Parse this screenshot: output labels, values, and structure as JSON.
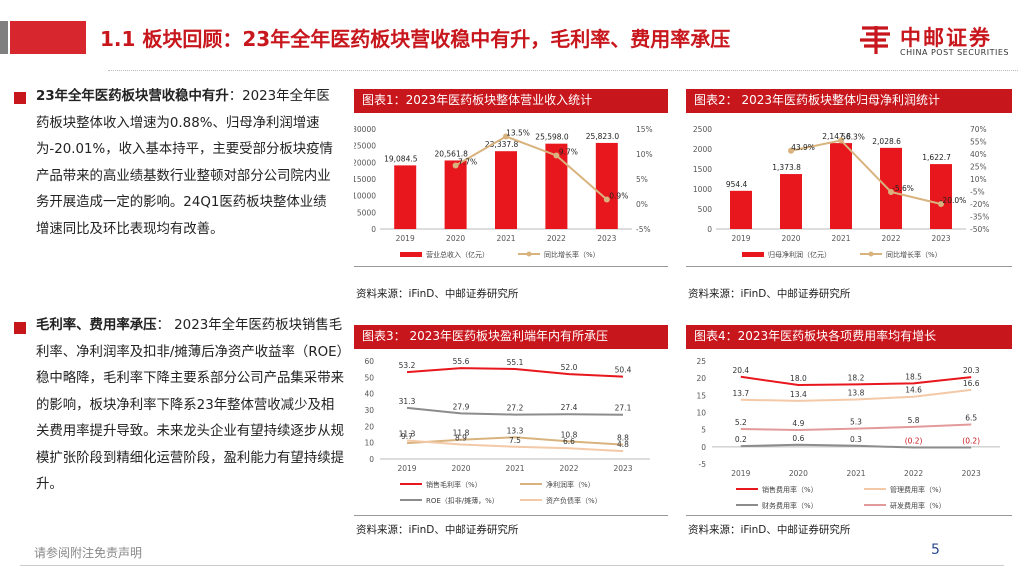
{
  "slide": {
    "title": "1.1 板块回顾：23年全年医药板块营收稳中有升，毛利率、费用率承压",
    "logo": {
      "cn": "中邮证券",
      "en": "CHINA POST SECURITIES",
      "color": "#c8161d"
    },
    "footer_left": "请参阅附注免责声明",
    "page_number": "5"
  },
  "left": {
    "p1_bold": "23年全年医药板块营收稳中有升",
    "p1_text": "：2023年全年医药板块整体收入增速为0.88%、归母净利润增速为-20.01%，收入基本持平，主要受部分板块疫情产品带来的高业绩基数行业整顿对部分公司院内业务开展造成一定的影响。24Q1医药板块整体业绩增速同比及环比表现均有改善。",
    "p2_bold": "毛利率、费用率承压",
    "p2_text": "： 2023年全年医药板块销售毛利率、净利润率及扣非/摊薄后净资产收益率（ROE）稳中略降，毛利率下降主要系部分公司产品集采带来的影响，板块净利率下降系23年整体营收减少及相关费用率提升导致。未来龙头企业有望持续逐步从规模扩张阶段到精细化运营阶段，盈利能力有望持续提升。"
  },
  "chart_data": [
    {
      "id": "c1",
      "type": "bar",
      "title": "图表1：2023年医药板块整体营业收入统计",
      "categories": [
        "2019",
        "2020",
        "2021",
        "2022",
        "2023"
      ],
      "series": [
        {
          "name": "营业总收入（亿元）",
          "values": [
            19084.5,
            20561.8,
            23337.8,
            25598.0,
            25823.0
          ],
          "labels": [
            "19,084.5",
            "20,561.8",
            "23,337.8",
            "25,598.0",
            "25,823.0"
          ],
          "axis": "left",
          "color": "#e8161d"
        },
        {
          "name": "同比增长率（%）",
          "values": [
            null,
            7.7,
            13.5,
            9.7,
            0.9
          ],
          "labels": [
            "",
            "7.7%",
            "13.5%",
            "9.7%",
            "0.9%"
          ],
          "axis": "right",
          "color": "#d9b37e"
        }
      ],
      "y_left": {
        "min": 0,
        "max": 30000,
        "ticks": [
          "0",
          "5000",
          "10000",
          "15000",
          "20000",
          "25000",
          "30000"
        ]
      },
      "y_right": {
        "min": -5,
        "max": 15,
        "ticks": [
          "-5%",
          "0%",
          "5%",
          "10%",
          "15%"
        ]
      },
      "source": "资料来源：iFinD、中邮证券研究所"
    },
    {
      "id": "c2",
      "type": "bar",
      "title": "图表2： 2023年医药板块整体归母净利润统计",
      "categories": [
        "2019",
        "2020",
        "2021",
        "2022",
        "2023"
      ],
      "series": [
        {
          "name": "归母净利润（亿元）",
          "values": [
            954.4,
            1373.8,
            2147.8,
            2028.6,
            1622.7
          ],
          "labels": [
            "954.4",
            "1,373.8",
            "2,147.8",
            "2,028.6",
            "1,622.7"
          ],
          "axis": "left",
          "color": "#e8161d"
        },
        {
          "name": "同比增长率（%）",
          "values": [
            null,
            43.9,
            56.3,
            -5.6,
            -20.0
          ],
          "labels": [
            "",
            "43.9%",
            "56.3%",
            "-5.6%",
            "-20.0%"
          ],
          "axis": "right",
          "color": "#d9b37e"
        }
      ],
      "y_left": {
        "min": 0,
        "max": 2500,
        "ticks": [
          "0",
          "500",
          "1000",
          "1500",
          "2000",
          "2500"
        ]
      },
      "y_right": {
        "min": -50,
        "max": 70,
        "ticks": [
          "-50%",
          "-35%",
          "-20%",
          "-5%",
          "10%",
          "25%",
          "40%",
          "55%",
          "70%"
        ]
      },
      "source": "资料来源：iFinD、中邮证券研究所"
    },
    {
      "id": "c3",
      "type": "line",
      "title": "图表3： 2023年医药板块盈利端年内有所承压",
      "categories": [
        "2019",
        "2020",
        "2021",
        "2022",
        "2023"
      ],
      "series": [
        {
          "name": "销售毛利率（%）",
          "values": [
            53.2,
            55.6,
            55.1,
            52.0,
            50.4
          ],
          "labels": [
            "53.2",
            "55.6",
            "55.1",
            "52.0",
            "50.4"
          ],
          "color": "#e8161d"
        },
        {
          "name": "净利润率（%）",
          "values": [
            9.7,
            11.8,
            13.3,
            10.8,
            8.8
          ],
          "labels": [
            "9.7",
            "11.8",
            "13.3",
            "10.8",
            "8.8"
          ],
          "color": "#d9b37e"
        },
        {
          "name": "ROE（扣非/摊薄，%）",
          "values": [
            31.3,
            27.9,
            27.2,
            27.4,
            27.1
          ],
          "labels": [
            "31.3",
            "27.9",
            "27.2",
            "27.4",
            "27.1"
          ],
          "color": "#8c8c8c"
        },
        {
          "name": "资产负债率（%）",
          "values": [
            11.3,
            8.9,
            7.5,
            6.6,
            4.8
          ],
          "labels": [
            "11.3",
            "8.9",
            "7.5",
            "6.6",
            "4.8"
          ],
          "color": "#f3c9a8"
        }
      ],
      "y_left": {
        "min": 0,
        "max": 60,
        "ticks": [
          "0",
          "10",
          "20",
          "30",
          "40",
          "50",
          "60"
        ]
      },
      "source": "资料来源：iFinD、中邮证券研究所"
    },
    {
      "id": "c4",
      "type": "line",
      "title": "图表4：2023年医药板块各项费用率均有增长",
      "categories": [
        "2019",
        "2020",
        "2021",
        "2022",
        "2023"
      ],
      "series": [
        {
          "name": "销售费用率（%）",
          "values": [
            20.4,
            18.0,
            18.2,
            18.5,
            20.3
          ],
          "labels": [
            "20.4",
            "18.0",
            "18.2",
            "18.5",
            "20.3"
          ],
          "color": "#e8161d"
        },
        {
          "name": "管理费用率（%）",
          "values": [
            13.7,
            13.4,
            13.8,
            14.6,
            16.6
          ],
          "labels": [
            "13.7",
            "13.4",
            "13.8",
            "14.6",
            "16.6"
          ],
          "color": "#f3c9a8"
        },
        {
          "name": "财务费用率（%）",
          "values": [
            0.2,
            0.6,
            0.3,
            -0.2,
            -0.2
          ],
          "labels": [
            "0.2",
            "0.6",
            "0.3",
            "(0.2)",
            "(0.2)"
          ],
          "color": "#8c8c8c"
        },
        {
          "name": "研发费用率（%）",
          "values": [
            5.2,
            4.9,
            5.3,
            5.8,
            6.5
          ],
          "labels": [
            "5.2",
            "4.9",
            "5.3",
            "5.8",
            "6.5"
          ],
          "color": "#e39a9a"
        }
      ],
      "y_left": {
        "min": -5,
        "max": 25,
        "ticks": [
          "-5",
          "0",
          "5",
          "10",
          "15",
          "20",
          "25"
        ]
      },
      "source": "资料来源：iFinD、中邮证券研究所"
    }
  ]
}
